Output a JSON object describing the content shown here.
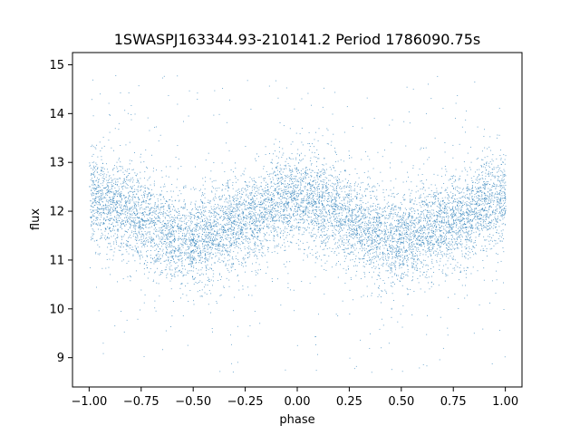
{
  "chart_data": {
    "type": "scatter",
    "title": "1SWASPJ163344.93-210141.2 Period 1786090.75s",
    "xlabel": "phase",
    "ylabel": "flux",
    "xlim": [
      -1.08,
      1.08
    ],
    "ylim": [
      8.4,
      15.25
    ],
    "xticks": [
      -1.0,
      -0.75,
      -0.5,
      -0.25,
      0.0,
      0.25,
      0.5,
      0.75,
      1.0
    ],
    "xtick_labels": [
      "−1.00",
      "−0.75",
      "−0.50",
      "−0.25",
      "0.00",
      "0.25",
      "0.50",
      "0.75",
      "1.00"
    ],
    "yticks": [
      9,
      10,
      11,
      12,
      13,
      14,
      15
    ],
    "ytick_labels": [
      "9",
      "10",
      "11",
      "12",
      "13",
      "14",
      "15"
    ],
    "grid": false,
    "legend": "none",
    "marker_color": "#1f77b4",
    "series": [
      {
        "phase_curve": {
          "phase": [
            -1.0,
            -0.9,
            -0.8,
            -0.7,
            -0.6,
            -0.5,
            -0.4,
            -0.3,
            -0.2,
            -0.1,
            0.0,
            0.1,
            0.2,
            0.3,
            0.4,
            0.5,
            0.6,
            0.7,
            0.8,
            0.9,
            1.0
          ],
          "mean_flux": [
            12.3,
            12.15,
            12.0,
            11.75,
            11.5,
            11.4,
            11.6,
            11.75,
            11.9,
            12.2,
            12.3,
            12.15,
            12.0,
            11.75,
            11.5,
            11.4,
            11.6,
            11.75,
            11.9,
            12.2,
            12.3
          ],
          "core_spread": 0.45
        },
        "n_points": 9000,
        "outlier_range": [
          8.7,
          14.9
        ]
      }
    ]
  }
}
